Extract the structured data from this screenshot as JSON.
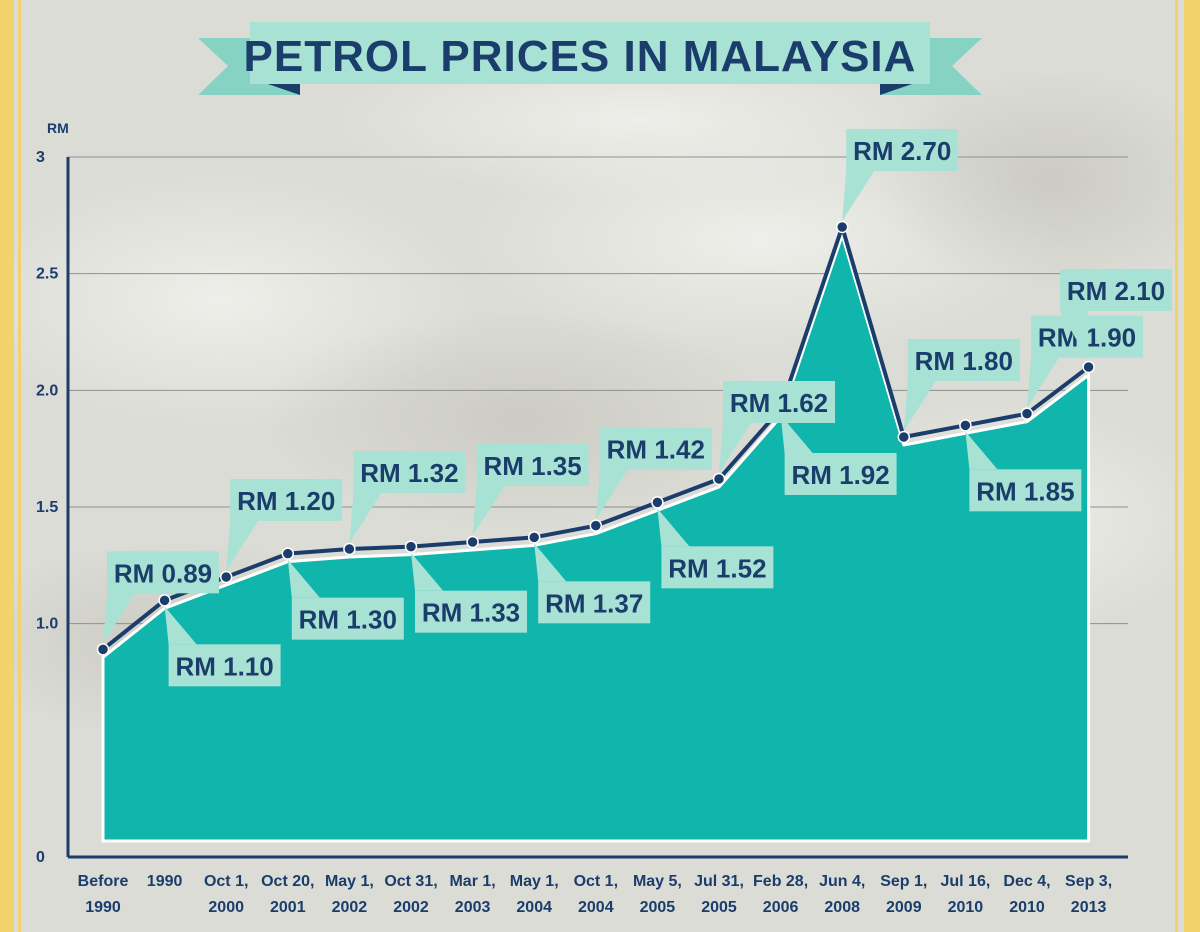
{
  "colors": {
    "background": "#dcdcd6",
    "border": "#f2d36b",
    "area": "#10b5ac",
    "line": "#1b3d6b",
    "label_fill": "#a8e2d4",
    "title_ribbon": "#a8e2d4",
    "ribbon_tail": "#86d3c4",
    "text": "#1b3d6b"
  },
  "chart_data": {
    "type": "area",
    "title": "PETROL PRICES IN MALAYSIA",
    "ylabel": "RM",
    "xlabel": "",
    "ylim": [
      0,
      3
    ],
    "yticks": [
      {
        "value": 0,
        "label": "0"
      },
      {
        "value": 1,
        "label": "1.0"
      },
      {
        "value": 1.5,
        "label": "1.5"
      },
      {
        "value": 2,
        "label": "2.0"
      },
      {
        "value": 2.5,
        "label": "2.5"
      },
      {
        "value": 3,
        "label": "3"
      }
    ],
    "grid": true,
    "categories": [
      [
        "Before",
        "1990"
      ],
      [
        "1990"
      ],
      [
        "Oct 1,",
        "2000"
      ],
      [
        "Oct 20,",
        "2001"
      ],
      [
        "May 1,",
        "2002"
      ],
      [
        "Oct 31,",
        "2002"
      ],
      [
        "Mar 1,",
        "2003"
      ],
      [
        "May 1,",
        "2004"
      ],
      [
        "Oct 1,",
        "2004"
      ],
      [
        "May 5,",
        "2005"
      ],
      [
        "Jul 31,",
        "2005"
      ],
      [
        "Feb 28,",
        "2006"
      ],
      [
        "Jun 4,",
        "2008"
      ],
      [
        "Sep 1,",
        "2009"
      ],
      [
        "Jul 16,",
        "2010"
      ],
      [
        "Dec 4,",
        "2010"
      ],
      [
        "Sep 3,",
        "2013"
      ]
    ],
    "values": [
      0.89,
      1.1,
      1.2,
      1.3,
      1.32,
      1.33,
      1.35,
      1.37,
      1.42,
      1.52,
      1.62,
      1.92,
      2.7,
      1.8,
      1.85,
      1.9,
      2.1
    ],
    "point_labels": [
      "RM 0.89",
      "RM 1.10",
      "RM 1.20",
      "RM 1.30",
      "RM 1.32",
      "RM 1.33",
      "RM 1.35",
      "RM 1.37",
      "RM 1.42",
      "RM 1.52",
      "RM 1.62",
      "RM 1.92",
      "RM 2.70",
      "RM 1.80",
      "RM 1.85",
      "RM 1.90",
      "RM 2.10"
    ],
    "label_sides": [
      "above",
      "below",
      "above",
      "below",
      "above",
      "below",
      "above",
      "below",
      "above",
      "below",
      "above",
      "below",
      "above",
      "above",
      "below",
      "above",
      "above"
    ]
  }
}
